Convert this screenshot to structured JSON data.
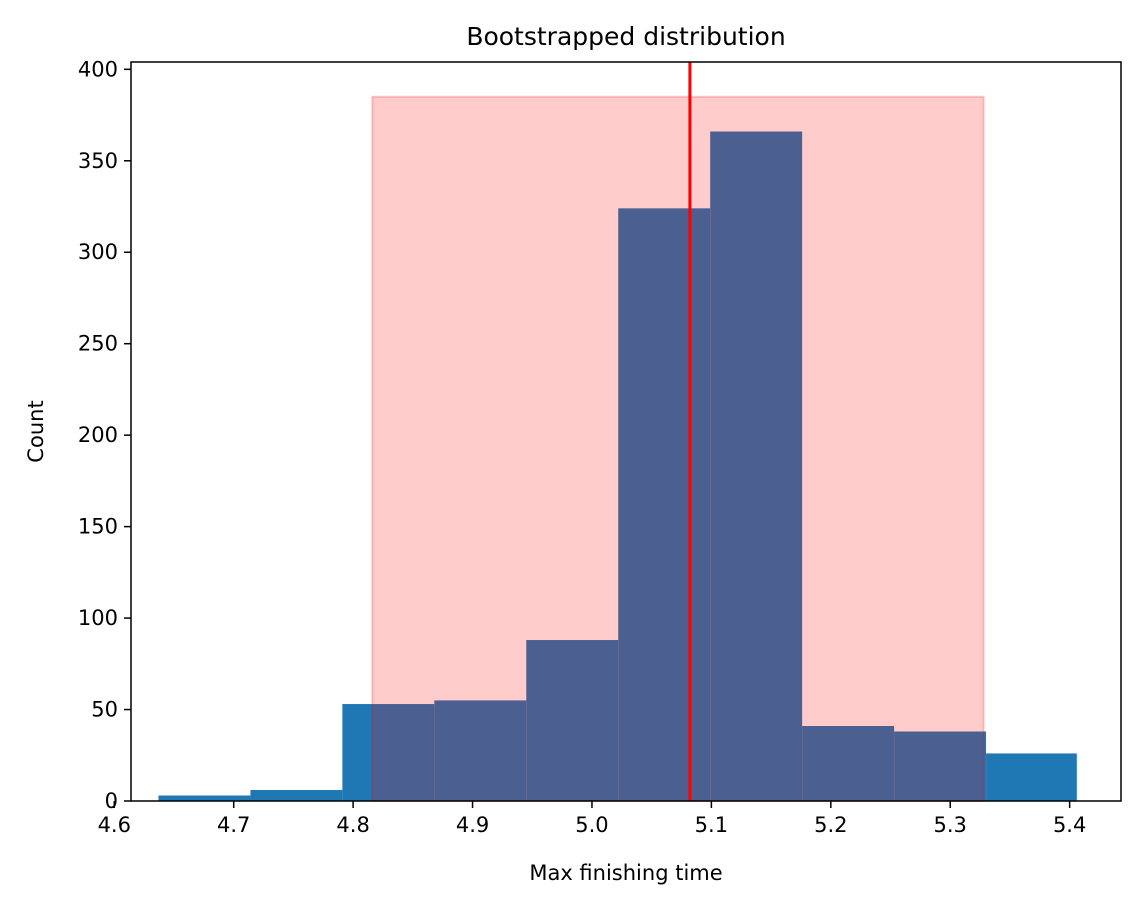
{
  "chart_data": {
    "type": "bar",
    "title": "Bootstrapped distribution",
    "xlabel": "Max finishing time",
    "ylabel": "Count",
    "xlim": [
      4.614,
      5.443
    ],
    "ylim": [
      0,
      404
    ],
    "xticks": [
      4.6,
      4.7,
      4.8,
      4.9,
      5.0,
      5.1,
      5.2,
      5.3,
      5.4
    ],
    "xtick_labels": [
      "4.6",
      "4.7",
      "4.8",
      "4.9",
      "5.0",
      "5.1",
      "5.2",
      "5.3",
      "5.4"
    ],
    "yticks": [
      0,
      50,
      100,
      150,
      200,
      250,
      300,
      350,
      400
    ],
    "ytick_labels": [
      "0",
      "50",
      "100",
      "150",
      "200",
      "250",
      "300",
      "350",
      "400"
    ],
    "grid": false,
    "bins": [
      {
        "x0": 4.637,
        "x1": 4.714,
        "count": 3
      },
      {
        "x0": 4.714,
        "x1": 4.791,
        "count": 6
      },
      {
        "x0": 4.791,
        "x1": 4.868,
        "count": 53
      },
      {
        "x0": 4.868,
        "x1": 4.945,
        "count": 55
      },
      {
        "x0": 4.945,
        "x1": 5.022,
        "count": 88
      },
      {
        "x0": 5.022,
        "x1": 5.099,
        "count": 324
      },
      {
        "x0": 5.099,
        "x1": 5.176,
        "count": 366
      },
      {
        "x0": 5.176,
        "x1": 5.253,
        "count": 41
      },
      {
        "x0": 5.253,
        "x1": 5.33,
        "count": 38
      },
      {
        "x0": 5.33,
        "x1": 5.406,
        "count": 26
      }
    ],
    "confidence_interval": {
      "x0": 4.816,
      "x1": 5.328,
      "y1": 385
    },
    "vertical_line": {
      "x": 5.082
    },
    "colors": {
      "bar": "#1f77b4",
      "interval_fill": "#ff0000",
      "interval_alpha": 0.2,
      "line": "#ff0000"
    }
  }
}
